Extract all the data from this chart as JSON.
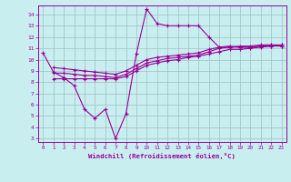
{
  "xlabel": "Windchill (Refroidissement éolien,°C)",
  "bg_color": "#c8eef0",
  "line_color": "#990099",
  "grid_color": "#9fbfbf",
  "xlim": [
    -0.5,
    23.5
  ],
  "ylim": [
    2.7,
    14.8
  ],
  "xticks": [
    0,
    1,
    2,
    3,
    4,
    5,
    6,
    7,
    8,
    9,
    10,
    11,
    12,
    13,
    14,
    15,
    16,
    17,
    18,
    19,
    20,
    21,
    22,
    23
  ],
  "yticks": [
    3,
    4,
    5,
    6,
    7,
    8,
    9,
    10,
    11,
    12,
    13,
    14
  ],
  "line1_x": [
    0,
    1,
    2,
    3,
    4,
    5,
    6,
    7,
    8,
    9,
    10,
    11,
    12,
    13,
    14,
    15,
    16,
    17,
    18,
    19,
    20,
    21,
    22,
    23
  ],
  "line1_y": [
    10.6,
    8.9,
    8.4,
    7.7,
    5.6,
    4.8,
    5.6,
    3.0,
    5.2,
    10.5,
    14.5,
    13.2,
    13.0,
    13.0,
    13.0,
    13.0,
    12.0,
    11.1,
    11.2,
    11.1,
    11.1,
    11.2,
    11.3,
    11.2
  ],
  "line2_x": [
    1,
    2,
    3,
    4,
    5,
    6,
    7,
    8,
    9,
    10,
    11,
    12,
    13,
    14,
    15,
    16,
    17,
    18,
    19,
    20,
    21,
    22,
    23
  ],
  "line2_y": [
    8.3,
    8.3,
    8.3,
    8.3,
    8.3,
    8.3,
    8.3,
    8.5,
    9.0,
    9.5,
    9.7,
    9.9,
    10.0,
    10.2,
    10.3,
    10.5,
    10.7,
    10.9,
    10.9,
    11.0,
    11.1,
    11.2,
    11.2
  ],
  "line3_x": [
    1,
    2,
    3,
    4,
    5,
    6,
    7,
    8,
    9,
    10,
    11,
    12,
    13,
    14,
    15,
    16,
    17,
    18,
    19,
    20,
    21,
    22,
    23
  ],
  "line3_y": [
    8.8,
    8.8,
    8.7,
    8.6,
    8.6,
    8.5,
    8.4,
    8.7,
    9.2,
    9.7,
    9.9,
    10.1,
    10.2,
    10.3,
    10.4,
    10.7,
    11.0,
    11.1,
    11.1,
    11.1,
    11.2,
    11.2,
    11.3
  ],
  "line4_x": [
    1,
    2,
    3,
    4,
    5,
    6,
    7,
    8,
    9,
    10,
    11,
    12,
    13,
    14,
    15,
    16,
    17,
    18,
    19,
    20,
    21,
    22,
    23
  ],
  "line4_y": [
    9.3,
    9.2,
    9.1,
    9.0,
    8.9,
    8.8,
    8.7,
    9.0,
    9.5,
    10.0,
    10.2,
    10.3,
    10.4,
    10.5,
    10.6,
    10.9,
    11.1,
    11.1,
    11.2,
    11.2,
    11.3,
    11.3,
    11.3
  ]
}
